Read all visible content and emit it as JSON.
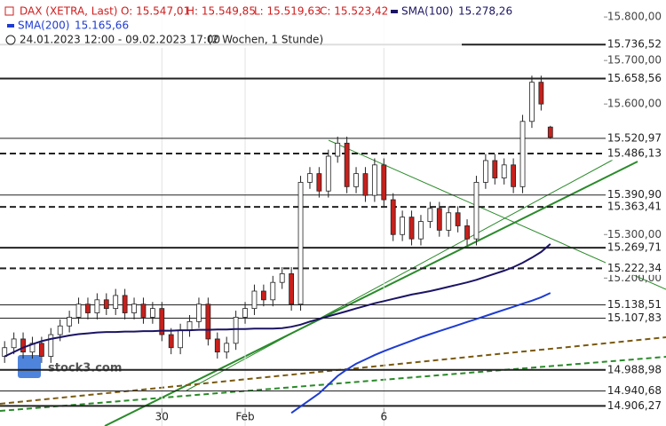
{
  "chart_data": {
    "type": "candlestick",
    "title": "DAX (XETRA, Last)",
    "title_color": "#d01c1c",
    "last_labels": [
      "O: 15.547,01",
      "H: 15.549,85",
      "L: 15.519,63",
      "C: 15.523,42"
    ],
    "period": "24.01.2023 12:00 - 09.02.2023 17:00",
    "interval": "(2 Wochen, 1 Stunde)",
    "watermark": "stock3.com",
    "up_color": "#ffffff",
    "down_color": "#c8201c",
    "ylim": [
      14860,
      15839
    ],
    "yticks": [
      {
        "value": 15800,
        "label": "15.800,00"
      },
      {
        "value": 15700,
        "label": "15.700,00"
      },
      {
        "value": 15600,
        "label": "15.600,00"
      },
      {
        "value": 15300,
        "label": "15.300,00"
      },
      {
        "value": 15200,
        "label": "15.200,00"
      }
    ],
    "categories": [
      null,
      null,
      null,
      null,
      null,
      null,
      null,
      null,
      null,
      null,
      null,
      null,
      null,
      null,
      null,
      null,
      null,
      "30",
      null,
      null,
      null,
      null,
      null,
      null,
      null,
      null,
      "Feb",
      null,
      null,
      null,
      null,
      null,
      null,
      null,
      null,
      null,
      null,
      null,
      null,
      null,
      null,
      "6",
      null,
      null,
      null,
      null,
      null,
      null,
      null,
      null,
      null,
      null,
      null,
      null,
      null,
      null,
      null,
      null,
      null,
      null
    ],
    "open": [
      15020,
      15040,
      15060,
      15030,
      15050,
      15020,
      15070,
      15090,
      15110,
      15140,
      15120,
      15150,
      15130,
      15160,
      15120,
      15140,
      15110,
      15130,
      15070,
      15040,
      15080,
      15100,
      15140,
      15060,
      15030,
      15050,
      15110,
      15130,
      15170,
      15150,
      15190,
      15210,
      15140,
      15420,
      15440,
      15400,
      15480,
      15510,
      15410,
      15440,
      15390,
      15460,
      15380,
      15300,
      15340,
      15290,
      15330,
      15360,
      15310,
      15350,
      15320,
      15290,
      15420,
      15470,
      15430,
      15460,
      15410,
      15560,
      15650,
      15547.01
    ],
    "high": [
      15055,
      15075,
      15075,
      15065,
      15065,
      15085,
      15105,
      15125,
      15155,
      15155,
      15165,
      15165,
      15175,
      15175,
      15155,
      15155,
      15145,
      15145,
      15085,
      15095,
      15115,
      15155,
      15155,
      15075,
      15065,
      15125,
      15145,
      15185,
      15185,
      15205,
      15225,
      15225,
      15435,
      15455,
      15455,
      15495,
      15525,
      15525,
      15455,
      15455,
      15475,
      15475,
      15395,
      15355,
      15355,
      15345,
      15375,
      15375,
      15365,
      15365,
      15335,
      15435,
      15485,
      15485,
      15475,
      15475,
      15575,
      15665,
      15665,
      15549.85
    ],
    "low": [
      15005,
      15025,
      15015,
      15015,
      15005,
      15005,
      15055,
      15075,
      15095,
      15105,
      15105,
      15115,
      15115,
      15105,
      15105,
      15095,
      15095,
      15055,
      15025,
      15025,
      15065,
      15085,
      15045,
      15015,
      15015,
      15035,
      15095,
      15115,
      15135,
      15135,
      15175,
      15125,
      15125,
      15405,
      15385,
      15385,
      15465,
      15395,
      15395,
      15375,
      15375,
      15365,
      15285,
      15285,
      15275,
      15275,
      15315,
      15295,
      15295,
      15305,
      15275,
      15275,
      15405,
      15415,
      15415,
      15395,
      15395,
      15545,
      15585,
      15519.63
    ],
    "close": [
      15040,
      15060,
      15030,
      15050,
      15020,
      15070,
      15090,
      15110,
      15140,
      15120,
      15150,
      15130,
      15160,
      15120,
      15140,
      15110,
      15130,
      15070,
      15040,
      15080,
      15100,
      15140,
      15060,
      15030,
      15050,
      15110,
      15130,
      15170,
      15150,
      15190,
      15210,
      15140,
      15420,
      15440,
      15400,
      15480,
      15510,
      15410,
      15440,
      15390,
      15460,
      15380,
      15300,
      15340,
      15290,
      15330,
      15360,
      15310,
      15350,
      15320,
      15290,
      15420,
      15470,
      15430,
      15460,
      15410,
      15560,
      15650,
      15600,
      15523.42
    ],
    "series": [
      {
        "name": "SMA(100)",
        "value_label": "15.278,26",
        "color": "#1b1464",
        "values": [
          15020,
          15030,
          15040,
          15048,
          15055,
          15060,
          15064,
          15068,
          15071,
          15073,
          15075,
          15076,
          15076,
          15077,
          15077,
          15078,
          15078,
          15079,
          15079,
          15080,
          15080,
          15081,
          15081,
          15082,
          15082,
          15083,
          15083,
          15084,
          15084,
          15084,
          15085,
          15088,
          15093,
          15100,
          15106,
          15112,
          15118,
          15124,
          15130,
          15136,
          15142,
          15147,
          15152,
          15157,
          15162,
          15166,
          15170,
          15175,
          15180,
          15185,
          15190,
          15196,
          15203,
          15210,
          15217,
          15225,
          15235,
          15247,
          15260,
          15278.26
        ]
      },
      {
        "name": "SMA(200)",
        "value_label": "15.165,66",
        "color": "#1e3cd2",
        "values": [
          null,
          null,
          null,
          null,
          null,
          null,
          null,
          null,
          null,
          null,
          null,
          null,
          null,
          null,
          null,
          null,
          null,
          null,
          null,
          null,
          null,
          null,
          null,
          null,
          null,
          null,
          null,
          null,
          null,
          null,
          null,
          14890,
          14905,
          14920,
          14935,
          14955,
          14975,
          14990,
          15003,
          15013,
          15023,
          15032,
          15040,
          15048,
          15056,
          15064,
          15071,
          15078,
          15085,
          15092,
          15099,
          15106,
          15113,
          15120,
          15127,
          15134,
          15141,
          15148,
          15156,
          15165.66
        ]
      }
    ],
    "levels": [
      {
        "value": 15736.52,
        "label": "15.736,52",
        "style": "solid",
        "thick": true
      },
      {
        "value": 15658.56,
        "label": "15.658,56",
        "style": "solid",
        "thick": true
      },
      {
        "value": 15520.97,
        "label": "15.520,97",
        "style": "solid",
        "thick": false
      },
      {
        "value": 15486.13,
        "label": "15.486,13",
        "style": "dashed",
        "thick": true
      },
      {
        "value": 15390.9,
        "label": "15.390,90",
        "style": "solid",
        "thick": false
      },
      {
        "value": 15363.41,
        "label": "15.363,41",
        "style": "dashed",
        "thick": true
      },
      {
        "value": 15269.71,
        "label": "15.269,71",
        "style": "solid",
        "thick": true
      },
      {
        "value": 15222.34,
        "label": "15.222,34",
        "style": "dashed",
        "thick": true
      },
      {
        "value": 15138.51,
        "label": "15.138,51",
        "style": "solid",
        "thick": false
      },
      {
        "value": 15107.83,
        "label": "15.107,83",
        "style": "solid",
        "thick": false
      },
      {
        "value": 14988.98,
        "label": "14.988,98",
        "style": "solid",
        "thick": true
      },
      {
        "value": 14940.68,
        "label": "14.940,68",
        "style": "solid",
        "thick": false
      },
      {
        "value": 14906.27,
        "label": "14.906,27",
        "style": "solid",
        "thick": true
      }
    ]
  }
}
